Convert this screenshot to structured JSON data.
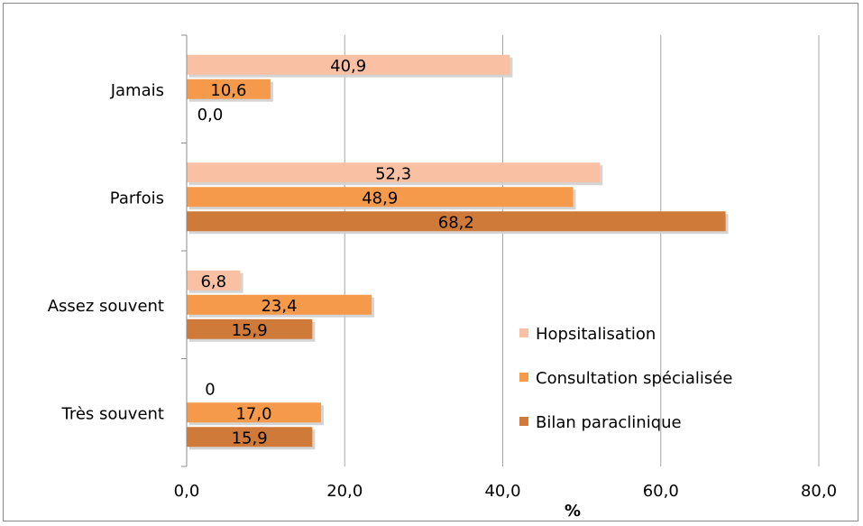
{
  "chart_data": {
    "type": "bar",
    "orientation": "horizontal",
    "categories": [
      "Jamais",
      "Parfois",
      "Assez souvent",
      "Très souvent"
    ],
    "series": [
      {
        "name": "Hopsitalisation",
        "color": "#f9c0a3",
        "values": [
          40.9,
          52.3,
          6.8,
          0
        ],
        "labels": [
          "40,9",
          "52,3",
          "6,8",
          "0"
        ]
      },
      {
        "name": "Consultation spécialisée",
        "color": "#f59a4a",
        "values": [
          10.6,
          48.9,
          23.4,
          17.0
        ],
        "labels": [
          "10,6",
          "48,9",
          "23,4",
          "17,0"
        ]
      },
      {
        "name": "Bilan paraclinique",
        "color": "#cf7a38",
        "values": [
          0,
          68.2,
          15.9,
          15.9
        ],
        "labels": [
          "0,0",
          "68,2",
          "15,9",
          "15,9"
        ]
      }
    ],
    "x_ticks": [
      "0,0",
      "20,0",
      "40,0",
      "60,0",
      "80,0"
    ],
    "xlim": [
      0,
      80
    ],
    "xlabel": "%",
    "title": "",
    "grid": "vertical",
    "legend_position": "inside-bottom-right"
  }
}
